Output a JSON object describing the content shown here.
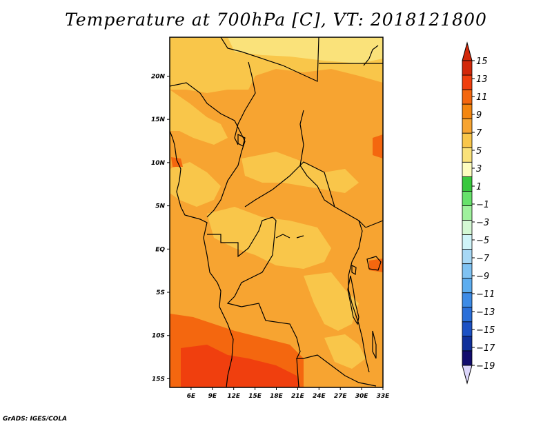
{
  "title": "Temperature at 700hPa [C], VT: 2018121800",
  "footer": "GrADS: IGES/COLA",
  "map": {
    "lon_range": [
      3,
      33
    ],
    "lat_range": [
      -16,
      24.5
    ],
    "lon_ticks": [
      {
        "value": 6,
        "label": "6E"
      },
      {
        "value": 9,
        "label": "9E"
      },
      {
        "value": 12,
        "label": "12E"
      },
      {
        "value": 15,
        "label": "15E"
      },
      {
        "value": 18,
        "label": "18E"
      },
      {
        "value": 21,
        "label": "21E"
      },
      {
        "value": 24,
        "label": "24E"
      },
      {
        "value": 27,
        "label": "27E"
      },
      {
        "value": 30,
        "label": "30E"
      },
      {
        "value": 33,
        "label": "33E"
      }
    ],
    "lat_ticks": [
      {
        "value": 20,
        "label": "20N"
      },
      {
        "value": 15,
        "label": "15N"
      },
      {
        "value": 10,
        "label": "10N"
      },
      {
        "value": 5,
        "label": "5N"
      },
      {
        "value": 0,
        "label": "EQ"
      },
      {
        "value": -5,
        "label": "5S"
      },
      {
        "value": -10,
        "label": "10S"
      },
      {
        "value": -15,
        "label": "15S"
      }
    ],
    "base_color": "#f7a431"
  },
  "colorbar": {
    "labels": [
      "15",
      "13",
      "11",
      "9",
      "7",
      "5",
      "3",
      "1",
      "−1",
      "−3",
      "−5",
      "−7",
      "−9",
      "−11",
      "−13",
      "−15",
      "−17",
      "−19"
    ],
    "colors": [
      "#d2280a",
      "#f03f0e",
      "#f4670f",
      "#f4860f",
      "#f7a431",
      "#f9c64a",
      "#fae27a",
      "#fefdbf",
      "#38c83d",
      "#67e16b",
      "#9ff19d",
      "#d4f8d4",
      "#cff4f9",
      "#a7d8f5",
      "#7fc2f2",
      "#5dadef",
      "#3d8be6",
      "#2a6fd9",
      "#1c51c4",
      "#10309b",
      "#120d6e"
    ],
    "top_arrow_color": "#d2280a",
    "bottom_arrow_color": "#dcd6fb"
  }
}
